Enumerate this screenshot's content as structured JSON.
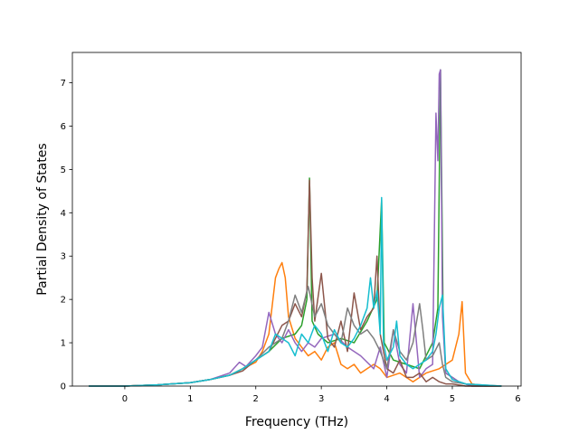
{
  "chart_data": {
    "type": "line",
    "title": "",
    "xlabel": "Frequency (THz)",
    "ylabel": "Partial Density of States",
    "xlim": [
      -0.8,
      6.05
    ],
    "ylim": [
      0,
      7.7
    ],
    "xticks": [
      0,
      1,
      2,
      3,
      4,
      5,
      6
    ],
    "yticks": [
      0,
      1,
      2,
      3,
      4,
      5,
      6,
      7
    ],
    "grid": false,
    "legend": "none",
    "series": [
      {
        "color": "#ff7f0e",
        "x": [
          -0.55,
          0.0,
          0.5,
          1.0,
          1.3,
          1.6,
          1.8,
          2.0,
          2.1,
          2.2,
          2.3,
          2.35,
          2.4,
          2.45,
          2.5,
          2.6,
          2.7,
          2.8,
          2.9,
          3.0,
          3.1,
          3.2,
          3.3,
          3.4,
          3.5,
          3.6,
          3.7,
          3.8,
          3.9,
          4.0,
          4.2,
          4.4,
          4.6,
          4.8,
          4.9,
          5.0,
          5.1,
          5.15,
          5.2,
          5.3,
          5.5,
          5.75
        ],
        "y": [
          0,
          0,
          0.03,
          0.08,
          0.15,
          0.25,
          0.4,
          0.55,
          0.8,
          1.2,
          2.5,
          2.7,
          2.85,
          2.5,
          1.6,
          1.1,
          0.9,
          0.7,
          0.8,
          0.6,
          0.9,
          1.0,
          0.5,
          0.4,
          0.5,
          0.3,
          0.4,
          0.5,
          0.4,
          0.2,
          0.3,
          0.1,
          0.3,
          0.4,
          0.5,
          0.6,
          1.2,
          1.95,
          0.3,
          0.05,
          0,
          0
        ]
      },
      {
        "color": "#2ca02c",
        "x": [
          -0.55,
          0.0,
          0.5,
          1.0,
          1.3,
          1.6,
          1.8,
          2.0,
          2.2,
          2.4,
          2.6,
          2.7,
          2.78,
          2.82,
          2.86,
          2.95,
          3.1,
          3.3,
          3.5,
          3.7,
          3.85,
          3.92,
          3.96,
          4.1,
          4.3,
          4.5,
          4.7,
          4.78,
          4.82,
          4.86,
          4.9,
          5.0,
          5.1,
          5.2,
          5.3,
          5.75
        ],
        "y": [
          0,
          0,
          0.03,
          0.08,
          0.15,
          0.25,
          0.4,
          0.6,
          0.8,
          1.1,
          1.2,
          1.4,
          2.0,
          4.8,
          1.5,
          1.2,
          1.0,
          1.1,
          1.0,
          1.5,
          2.0,
          4.3,
          1.0,
          0.6,
          0.5,
          0.4,
          1.0,
          1.8,
          7.3,
          1.6,
          0.3,
          0.2,
          0.1,
          0.05,
          0,
          0
        ]
      },
      {
        "color": "#9467bd",
        "x": [
          -0.55,
          0.0,
          0.5,
          1.0,
          1.3,
          1.6,
          1.75,
          1.85,
          2.0,
          2.1,
          2.2,
          2.3,
          2.4,
          2.5,
          2.6,
          2.7,
          2.8,
          2.9,
          3.0,
          3.2,
          3.4,
          3.6,
          3.8,
          3.9,
          4.0,
          4.1,
          4.2,
          4.3,
          4.4,
          4.5,
          4.6,
          4.7,
          4.75,
          4.78,
          4.8,
          4.82,
          4.85,
          4.9,
          5.0,
          5.1,
          5.2,
          5.3,
          5.75
        ],
        "y": [
          0,
          0,
          0.03,
          0.08,
          0.15,
          0.3,
          0.55,
          0.45,
          0.7,
          0.9,
          1.7,
          1.2,
          1.0,
          1.3,
          1.0,
          0.8,
          1.0,
          0.9,
          1.1,
          1.2,
          0.9,
          0.7,
          0.4,
          0.9,
          0.2,
          1.3,
          0.5,
          0.3,
          1.9,
          0.2,
          0.4,
          0.5,
          6.3,
          5.2,
          7.2,
          7.3,
          1.6,
          0.3,
          0.2,
          0.1,
          0.05,
          0,
          0
        ]
      },
      {
        "color": "#8c564b",
        "x": [
          -0.55,
          0.0,
          0.5,
          1.0,
          1.3,
          1.6,
          1.8,
          2.0,
          2.2,
          2.4,
          2.5,
          2.6,
          2.7,
          2.78,
          2.82,
          2.86,
          2.9,
          3.0,
          3.1,
          3.2,
          3.3,
          3.4,
          3.5,
          3.6,
          3.7,
          3.8,
          3.85,
          3.9,
          4.0,
          4.1,
          4.2,
          4.3,
          4.4,
          4.5,
          4.6,
          4.7,
          4.8,
          4.9,
          5.0,
          5.2,
          5.75
        ],
        "y": [
          0,
          0,
          0.03,
          0.08,
          0.15,
          0.25,
          0.35,
          0.6,
          0.8,
          1.4,
          1.5,
          1.9,
          1.6,
          2.2,
          4.75,
          2.5,
          1.5,
          2.6,
          1.1,
          0.9,
          1.5,
          0.8,
          2.15,
          1.3,
          1.6,
          1.8,
          3.0,
          1.2,
          0.4,
          0.3,
          0.6,
          0.2,
          0.2,
          0.3,
          0.1,
          0.2,
          0.1,
          0.05,
          0.05,
          0,
          0
        ]
      },
      {
        "color": "#7f7f7f",
        "x": [
          -0.55,
          0.0,
          0.5,
          1.0,
          1.3,
          1.6,
          1.8,
          2.0,
          2.2,
          2.4,
          2.5,
          2.6,
          2.7,
          2.8,
          2.9,
          3.0,
          3.1,
          3.2,
          3.3,
          3.4,
          3.5,
          3.6,
          3.7,
          3.8,
          3.9,
          4.0,
          4.1,
          4.2,
          4.3,
          4.4,
          4.5,
          4.55,
          4.6,
          4.7,
          4.8,
          4.85,
          4.9,
          5.0,
          5.2,
          5.75
        ],
        "y": [
          0,
          0,
          0.03,
          0.08,
          0.15,
          0.25,
          0.4,
          0.6,
          0.9,
          1.1,
          1.5,
          2.1,
          1.7,
          2.3,
          1.6,
          1.9,
          1.4,
          1.2,
          1.0,
          1.8,
          1.4,
          1.2,
          1.3,
          1.1,
          0.8,
          0.4,
          1.3,
          0.8,
          0.6,
          1.0,
          1.9,
          1.3,
          0.6,
          0.7,
          1.0,
          0.5,
          0.2,
          0.1,
          0.05,
          0
        ]
      },
      {
        "color": "#17becf",
        "x": [
          -0.55,
          0.0,
          0.5,
          1.0,
          1.3,
          1.6,
          1.8,
          2.0,
          2.2,
          2.3,
          2.4,
          2.5,
          2.6,
          2.7,
          2.8,
          2.9,
          3.0,
          3.1,
          3.2,
          3.3,
          3.4,
          3.5,
          3.6,
          3.7,
          3.75,
          3.8,
          3.85,
          3.9,
          3.92,
          3.95,
          4.0,
          4.1,
          4.15,
          4.2,
          4.3,
          4.4,
          4.5,
          4.6,
          4.7,
          4.75,
          4.8,
          4.85,
          4.9,
          5.0,
          5.2,
          5.75
        ],
        "y": [
          0,
          0,
          0.03,
          0.08,
          0.15,
          0.25,
          0.4,
          0.6,
          0.8,
          1.2,
          1.1,
          1.0,
          0.7,
          1.2,
          1.0,
          1.4,
          1.2,
          0.8,
          1.3,
          1.0,
          0.9,
          1.1,
          1.4,
          1.8,
          2.5,
          1.8,
          2.2,
          1.2,
          4.35,
          1.0,
          0.6,
          0.9,
          1.5,
          0.7,
          0.5,
          0.4,
          0.5,
          0.6,
          0.8,
          1.2,
          1.8,
          2.1,
          0.4,
          0.15,
          0.05,
          0
        ]
      }
    ]
  }
}
